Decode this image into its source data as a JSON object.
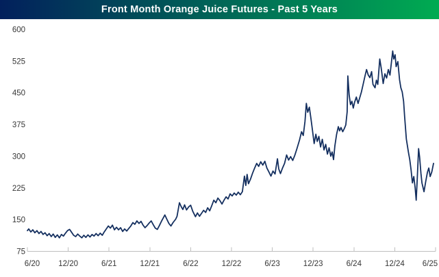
{
  "title_bar": {
    "title": "Front Month Orange Juice Futures - Past 5 Years",
    "gradient_left": "#02205c",
    "gradient_right": "#00ab52",
    "text_color": "#ffffff"
  },
  "chart_data": {
    "type": "line",
    "title": "Front Month Orange Juice Futures - Past 5 Years",
    "legend": "none",
    "grid": "off",
    "background": "#ffffff",
    "line_color": "#142f5f",
    "axis_color": "#bfbfbf",
    "label_color": "#363636",
    "y_axis": {
      "min": 75,
      "max": 600,
      "tick_interval": 75,
      "tick_labels": [
        600,
        525,
        450,
        375,
        300,
        225,
        150,
        75
      ]
    },
    "x_axis": {
      "tick_labels": [
        "6/20",
        "12/20",
        "6/21",
        "12/21",
        "6/22",
        "12/22",
        "6/23",
        "12/23",
        "6/24",
        "12/24",
        "6/25"
      ],
      "range_months": [
        0,
        60
      ]
    },
    "points_unit": "[months since 6/2020, price]",
    "points": [
      [
        0,
        124
      ],
      [
        0.2,
        128
      ],
      [
        0.5,
        121
      ],
      [
        0.8,
        126
      ],
      [
        1.1,
        119
      ],
      [
        1.4,
        124
      ],
      [
        1.7,
        117
      ],
      [
        2,
        122
      ],
      [
        2.3,
        115
      ],
      [
        2.6,
        119
      ],
      [
        2.9,
        112
      ],
      [
        3.2,
        117
      ],
      [
        3.5,
        110
      ],
      [
        3.8,
        116
      ],
      [
        4.1,
        108
      ],
      [
        4.4,
        114
      ],
      [
        4.7,
        107
      ],
      [
        5,
        115
      ],
      [
        5.3,
        111
      ],
      [
        5.6,
        118
      ],
      [
        5.9,
        124
      ],
      [
        6.2,
        127
      ],
      [
        6.5,
        120
      ],
      [
        6.8,
        113
      ],
      [
        7.1,
        110
      ],
      [
        7.4,
        116
      ],
      [
        7.7,
        111
      ],
      [
        8,
        107
      ],
      [
        8.3,
        113
      ],
      [
        8.6,
        108
      ],
      [
        8.9,
        114
      ],
      [
        9.2,
        109
      ],
      [
        9.5,
        115
      ],
      [
        9.8,
        111
      ],
      [
        10.1,
        117
      ],
      [
        10.4,
        112
      ],
      [
        10.7,
        118
      ],
      [
        11,
        113
      ],
      [
        11.3,
        121
      ],
      [
        11.6,
        128
      ],
      [
        11.9,
        135
      ],
      [
        12.2,
        130
      ],
      [
        12.5,
        137
      ],
      [
        12.8,
        126
      ],
      [
        13.1,
        132
      ],
      [
        13.4,
        126
      ],
      [
        13.7,
        131
      ],
      [
        14,
        122
      ],
      [
        14.3,
        128
      ],
      [
        14.6,
        123
      ],
      [
        14.9,
        129
      ],
      [
        15.2,
        135
      ],
      [
        15.5,
        143
      ],
      [
        15.8,
        139
      ],
      [
        16.1,
        147
      ],
      [
        16.4,
        141
      ],
      [
        16.7,
        146
      ],
      [
        17,
        137
      ],
      [
        17.3,
        131
      ],
      [
        17.6,
        136
      ],
      [
        17.9,
        142
      ],
      [
        18.2,
        147
      ],
      [
        18.5,
        138
      ],
      [
        18.8,
        130
      ],
      [
        19.1,
        127
      ],
      [
        19.4,
        136
      ],
      [
        19.7,
        146
      ],
      [
        20,
        155
      ],
      [
        20.2,
        161
      ],
      [
        20.5,
        151
      ],
      [
        20.8,
        141
      ],
      [
        21.1,
        135
      ],
      [
        21.4,
        143
      ],
      [
        21.8,
        151
      ],
      [
        22,
        158
      ],
      [
        22.35,
        190
      ],
      [
        22.6,
        181
      ],
      [
        22.85,
        174
      ],
      [
        23.1,
        185
      ],
      [
        23.4,
        173
      ],
      [
        23.7,
        180
      ],
      [
        24,
        184
      ],
      [
        24.3,
        170
      ],
      [
        24.7,
        157
      ],
      [
        25,
        166
      ],
      [
        25.3,
        158
      ],
      [
        25.6,
        165
      ],
      [
        25.9,
        172
      ],
      [
        26.2,
        167
      ],
      [
        26.5,
        178
      ],
      [
        26.8,
        171
      ],
      [
        27.1,
        183
      ],
      [
        27.4,
        196
      ],
      [
        27.7,
        190
      ],
      [
        28,
        201
      ],
      [
        28.3,
        195
      ],
      [
        28.6,
        187
      ],
      [
        28.9,
        196
      ],
      [
        29.2,
        204
      ],
      [
        29.5,
        199
      ],
      [
        29.8,
        211
      ],
      [
        30.1,
        206
      ],
      [
        30.4,
        213
      ],
      [
        30.7,
        208
      ],
      [
        31,
        215
      ],
      [
        31.3,
        209
      ],
      [
        31.6,
        216
      ],
      [
        31.9,
        253
      ],
      [
        32.1,
        231
      ],
      [
        32.3,
        257
      ],
      [
        32.5,
        235
      ],
      [
        32.8,
        246
      ],
      [
        33.1,
        260
      ],
      [
        33.4,
        272
      ],
      [
        33.7,
        283
      ],
      [
        34,
        276
      ],
      [
        34.3,
        287
      ],
      [
        34.6,
        279
      ],
      [
        34.9,
        288
      ],
      [
        35.2,
        272
      ],
      [
        35.5,
        263
      ],
      [
        35.8,
        253
      ],
      [
        36.1,
        265
      ],
      [
        36.4,
        258
      ],
      [
        36.75,
        294
      ],
      [
        36.95,
        270
      ],
      [
        37.2,
        259
      ],
      [
        37.5,
        272
      ],
      [
        37.8,
        283
      ],
      [
        38.1,
        303
      ],
      [
        38.4,
        291
      ],
      [
        38.7,
        299
      ],
      [
        39,
        290
      ],
      [
        39.3,
        302
      ],
      [
        39.6,
        317
      ],
      [
        40,
        338
      ],
      [
        40.3,
        358
      ],
      [
        40.55,
        349
      ],
      [
        40.8,
        382
      ],
      [
        41,
        425
      ],
      [
        41.2,
        404
      ],
      [
        41.45,
        416
      ],
      [
        41.7,
        387
      ],
      [
        41.9,
        362
      ],
      [
        42.15,
        330
      ],
      [
        42.4,
        352
      ],
      [
        42.6,
        335
      ],
      [
        42.85,
        347
      ],
      [
        43.1,
        322
      ],
      [
        43.35,
        340
      ],
      [
        43.6,
        315
      ],
      [
        43.85,
        328
      ],
      [
        44.1,
        305
      ],
      [
        44.35,
        320
      ],
      [
        44.6,
        300
      ],
      [
        44.8,
        310
      ],
      [
        45,
        292
      ],
      [
        45.2,
        325
      ],
      [
        45.45,
        352
      ],
      [
        45.7,
        370
      ],
      [
        45.9,
        360
      ],
      [
        46.1,
        368
      ],
      [
        46.35,
        358
      ],
      [
        46.6,
        366
      ],
      [
        46.8,
        374
      ],
      [
        47,
        405
      ],
      [
        47.1,
        490
      ],
      [
        47.3,
        445
      ],
      [
        47.5,
        422
      ],
      [
        47.7,
        430
      ],
      [
        47.9,
        414
      ],
      [
        48.1,
        428
      ],
      [
        48.35,
        440
      ],
      [
        48.6,
        425
      ],
      [
        48.85,
        438
      ],
      [
        49.1,
        452
      ],
      [
        49.35,
        470
      ],
      [
        49.6,
        488
      ],
      [
        49.85,
        505
      ],
      [
        50.1,
        492
      ],
      [
        50.35,
        486
      ],
      [
        50.6,
        500
      ],
      [
        50.8,
        470
      ],
      [
        51.1,
        462
      ],
      [
        51.3,
        480
      ],
      [
        51.5,
        470
      ],
      [
        51.8,
        530
      ],
      [
        52,
        510
      ],
      [
        52.3,
        472
      ],
      [
        52.55,
        495
      ],
      [
        52.8,
        485
      ],
      [
        53.05,
        505
      ],
      [
        53.3,
        492
      ],
      [
        53.5,
        520
      ],
      [
        53.7,
        549
      ],
      [
        53.85,
        530
      ],
      [
        54.05,
        540
      ],
      [
        54.2,
        512
      ],
      [
        54.45,
        524
      ],
      [
        54.7,
        481
      ],
      [
        54.9,
        462
      ],
      [
        55.1,
        452
      ],
      [
        55.3,
        430
      ],
      [
        55.45,
        394
      ],
      [
        55.7,
        341
      ],
      [
        56,
        310
      ],
      [
        56.2,
        292
      ],
      [
        56.4,
        268
      ],
      [
        56.6,
        237
      ],
      [
        56.8,
        252
      ],
      [
        57,
        225
      ],
      [
        57.15,
        196
      ],
      [
        57.3,
        245
      ],
      [
        57.5,
        318
      ],
      [
        57.65,
        298
      ],
      [
        57.85,
        260
      ],
      [
        58,
        237
      ],
      [
        58.3,
        216
      ],
      [
        58.55,
        240
      ],
      [
        58.8,
        262
      ],
      [
        59,
        272
      ],
      [
        59.2,
        252
      ],
      [
        59.45,
        263
      ],
      [
        59.7,
        283
      ]
    ]
  }
}
